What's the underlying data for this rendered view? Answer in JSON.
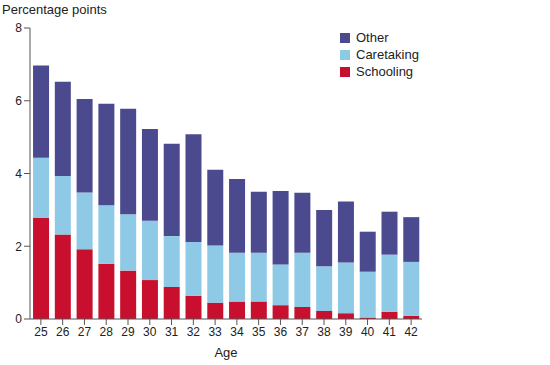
{
  "chart_data": {
    "type": "bar",
    "stacked": true,
    "y_label": "Percentage points",
    "x_label": "Age",
    "categories": [
      "25",
      "26",
      "27",
      "28",
      "29",
      "30",
      "31",
      "32",
      "33",
      "34",
      "35",
      "36",
      "37",
      "38",
      "39",
      "40",
      "41",
      "42"
    ],
    "series": [
      {
        "name": "Schooling",
        "color": "#c8102e",
        "values": [
          2.78,
          2.32,
          1.92,
          1.52,
          1.33,
          1.07,
          0.88,
          0.64,
          0.45,
          0.48,
          0.48,
          0.38,
          0.33,
          0.22,
          0.16,
          0.04,
          0.2,
          0.09
        ]
      },
      {
        "name": "Caretaking",
        "color": "#8ecae6",
        "values": [
          1.65,
          1.61,
          1.56,
          1.61,
          1.55,
          1.63,
          1.4,
          1.48,
          1.57,
          1.34,
          1.34,
          1.12,
          1.49,
          1.23,
          1.39,
          1.26,
          1.57,
          1.48
        ]
      },
      {
        "name": "Other",
        "color": "#4b4a8e",
        "values": [
          2.54,
          2.59,
          2.57,
          2.79,
          2.9,
          2.52,
          2.54,
          2.96,
          2.08,
          2.03,
          1.68,
          2.02,
          1.65,
          1.55,
          1.68,
          1.1,
          1.18,
          1.23
        ]
      }
    ],
    "ylim": [
      0,
      8
    ],
    "yticks": [
      0,
      2,
      4,
      6,
      8
    ],
    "legend": "upper right"
  }
}
